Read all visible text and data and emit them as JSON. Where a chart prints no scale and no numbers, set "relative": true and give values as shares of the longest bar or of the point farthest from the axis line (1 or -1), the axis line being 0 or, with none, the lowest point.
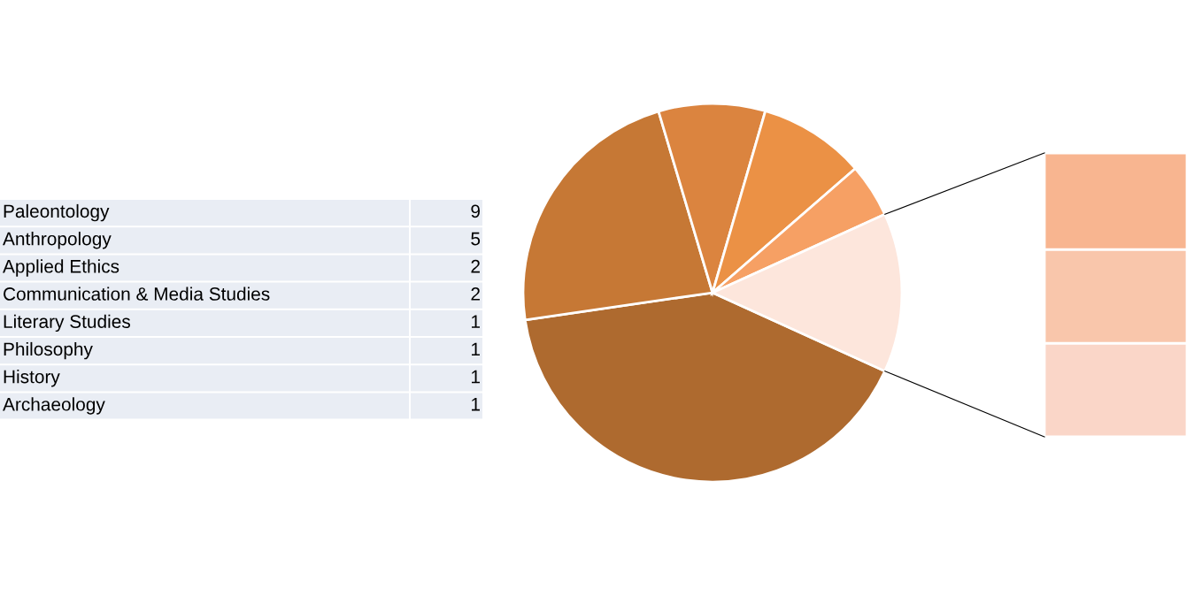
{
  "chart_data": [
    {
      "type": "other",
      "categories": [
        "Paleontology",
        "Anthropology",
        "Applied Ethics",
        "Communication & Media Studies",
        "Literary Studies",
        "Philosophy",
        "History",
        "Archaeology"
      ],
      "values": [
        9,
        5,
        2,
        2,
        1,
        1,
        1,
        1
      ],
      "data_labels": true
    },
    {
      "type": "pie",
      "categories": [
        null,
        null,
        null,
        null,
        null,
        null
      ],
      "values": [
        40.9,
        22.7,
        9.1,
        9.1,
        4.6,
        13.6
      ],
      "colors": [
        "#ae6a2f",
        "#c67835",
        "#db843f",
        "#eb9145",
        "#f6a064",
        "#fde6dc"
      ]
    },
    {
      "type": "bar",
      "stacked": true,
      "relative": true,
      "categories": [
        null
      ],
      "series": [
        {
          "color": "#fad6c8",
          "values": [
            0.33
          ]
        },
        {
          "color": "#f9c6ab",
          "values": [
            0.33
          ]
        },
        {
          "color": "#f8b590",
          "values": [
            0.34
          ]
        }
      ]
    }
  ]
}
